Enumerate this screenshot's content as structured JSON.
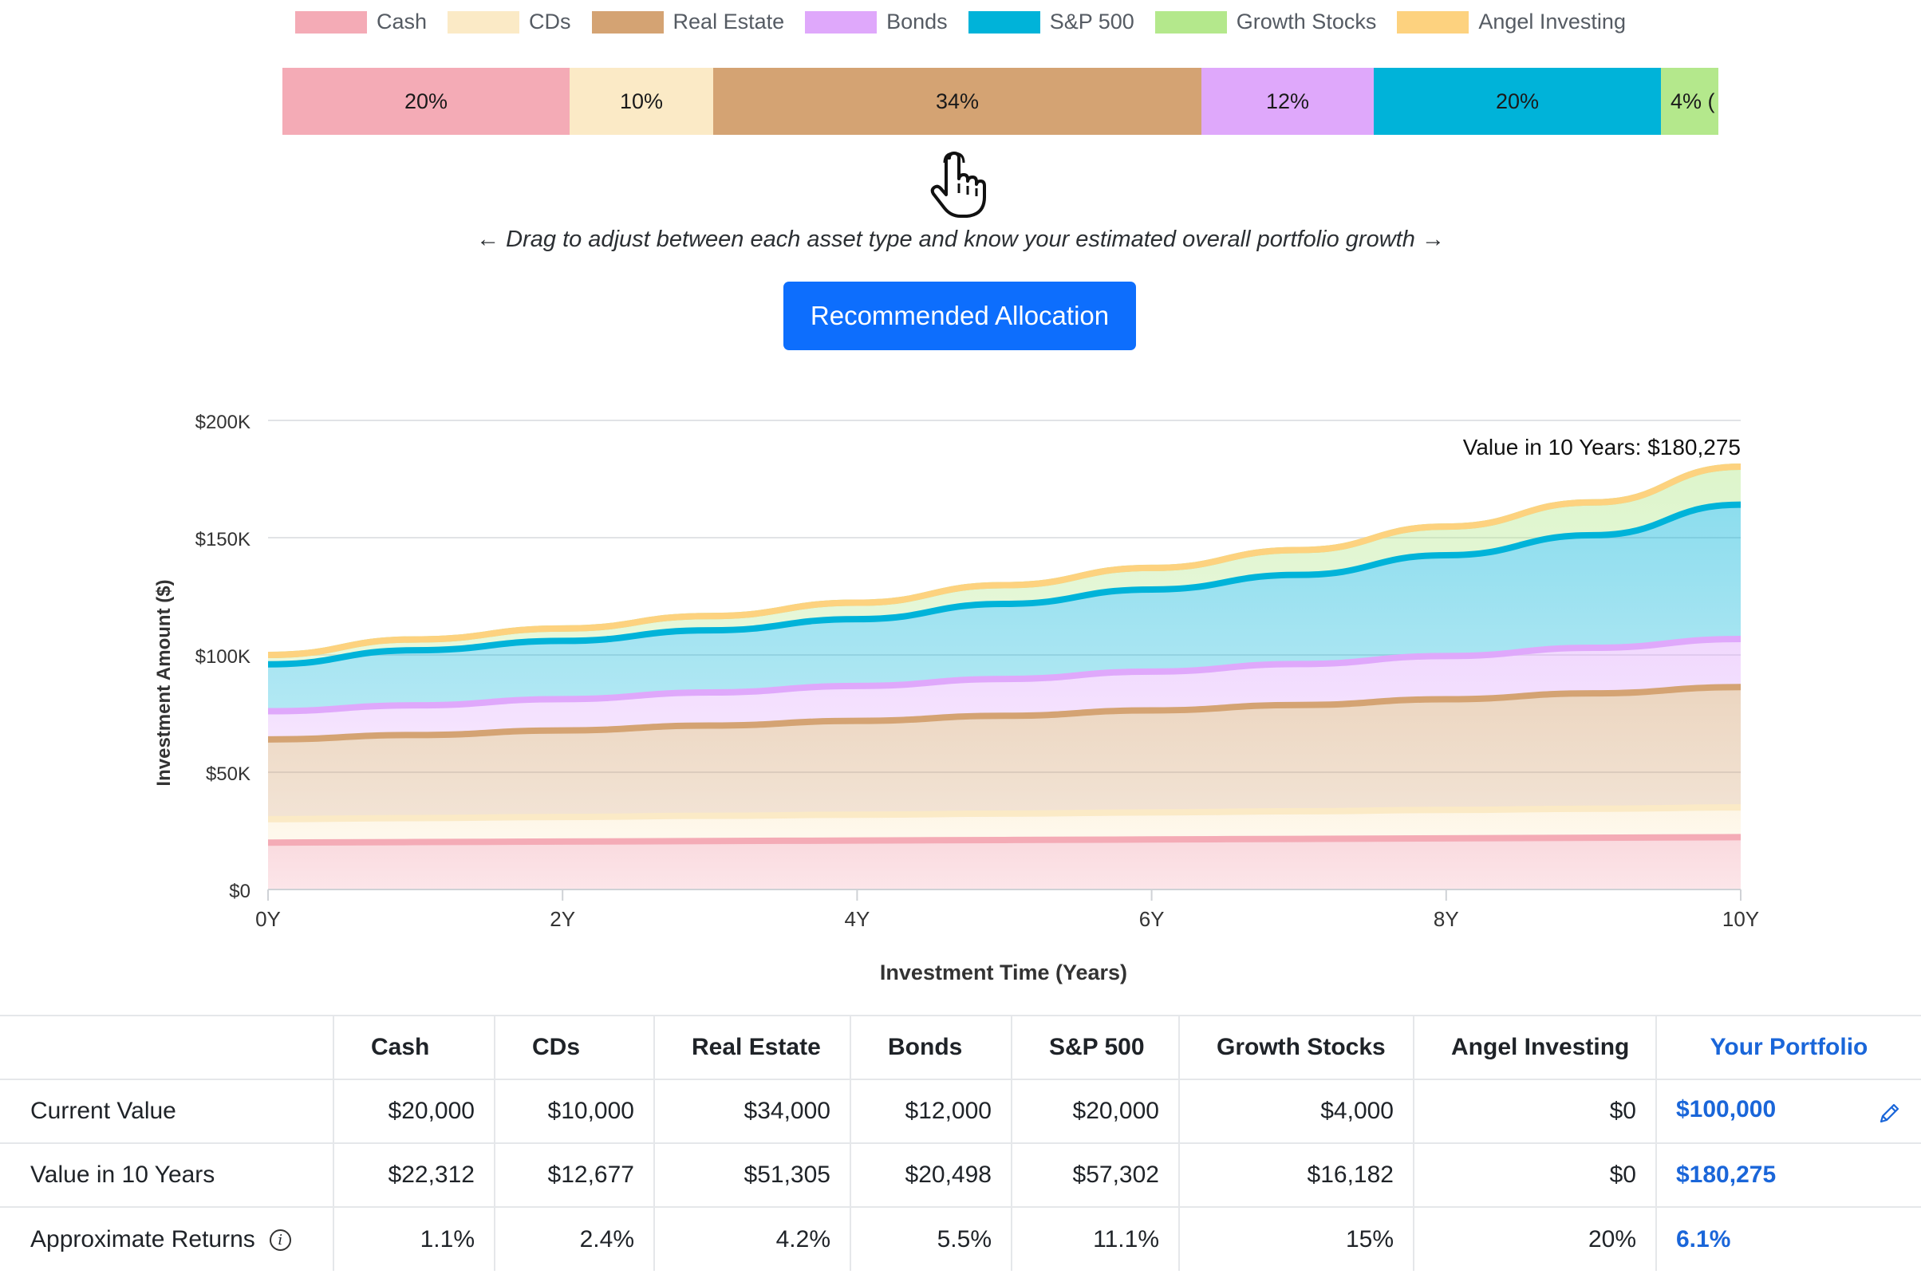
{
  "legend": [
    {
      "label": "Cash",
      "color": "#f4abb6"
    },
    {
      "label": "CDs",
      "color": "#fbeac6"
    },
    {
      "label": "Real Estate",
      "color": "#d4a373"
    },
    {
      "label": "Bonds",
      "color": "#dfa8fb"
    },
    {
      "label": "S&P 500",
      "color": "#00b3d9"
    },
    {
      "label": "Growth Stocks",
      "color": "#b4e88c"
    },
    {
      "label": "Angel Investing",
      "color": "#fdd27f"
    }
  ],
  "allocation": [
    {
      "label": "20%",
      "percent": 20,
      "color": "#f4abb6"
    },
    {
      "label": "10%",
      "percent": 10,
      "color": "#fbeac6"
    },
    {
      "label": "34%",
      "percent": 34,
      "color": "#d4a373"
    },
    {
      "label": "12%",
      "percent": 12,
      "color": "#dfa8fb"
    },
    {
      "label": "20%",
      "percent": 20,
      "color": "#00b3d9"
    },
    {
      "label": "4% (",
      "percent": 4,
      "color": "#b4e88c"
    }
  ],
  "hint": "← Drag to adjust between each asset type and know your estimated overall portfolio growth →",
  "recommended_button": "Recommended Allocation",
  "chart_data": {
    "type": "area",
    "stacked": true,
    "ylabel": "Investment Amount ($)",
    "xlabel": "Investment Time (Years)",
    "x": [
      0,
      1,
      2,
      3,
      4,
      5,
      6,
      7,
      8,
      9,
      10
    ],
    "x_tick_labels": [
      "0Y",
      "2Y",
      "4Y",
      "6Y",
      "8Y",
      "10Y"
    ],
    "x_ticks": [
      0,
      2,
      4,
      6,
      8,
      10
    ],
    "y_tick_labels": [
      "$0",
      "$50K",
      "$100K",
      "$150K",
      "$200K"
    ],
    "y_ticks": [
      0,
      50000,
      100000,
      150000,
      200000
    ],
    "ylim": [
      0,
      200000
    ],
    "annotation": "Value in 10 Years: $180,275",
    "series": [
      {
        "name": "Cash",
        "color": "#f4abb6",
        "values": [
          20000,
          20220,
          20440,
          20660,
          20880,
          21100,
          21330,
          21570,
          21820,
          22060,
          22312
        ]
      },
      {
        "name": "CDs",
        "color": "#fbeac6",
        "values": [
          10000,
          10240,
          10490,
          10740,
          11000,
          11260,
          11530,
          11800,
          12090,
          12380,
          12677
        ]
      },
      {
        "name": "Real Estate",
        "color": "#d4a373",
        "values": [
          34000,
          35400,
          36900,
          38500,
          40000,
          41700,
          43500,
          45300,
          47200,
          49200,
          51305
        ]
      },
      {
        "name": "Bonds",
        "color": "#dfa8fb",
        "values": [
          12000,
          12650,
          13350,
          14100,
          14880,
          15700,
          16550,
          17460,
          18420,
          19420,
          20498
        ]
      },
      {
        "name": "S&P 500",
        "color": "#00b3d9",
        "values": [
          20000,
          23500,
          24800,
          26500,
          28500,
          32000,
          35000,
          38000,
          43000,
          48000,
          57302
        ]
      },
      {
        "name": "Growth Stocks",
        "color": "#b4e88c",
        "values": [
          4000,
          4600,
          5300,
          6100,
          7000,
          8000,
          9200,
          10600,
          12200,
          14000,
          16182
        ]
      },
      {
        "name": "Angel Investing",
        "color": "#fdd27f",
        "values": [
          0,
          0,
          0,
          0,
          0,
          0,
          0,
          0,
          0,
          0,
          0
        ]
      }
    ]
  },
  "table": {
    "headers": [
      "",
      "Cash",
      "CDs",
      "Real Estate",
      "Bonds",
      "S&P 500",
      "Growth Stocks",
      "Angel Investing",
      "Your Portfolio"
    ],
    "rows": [
      {
        "label": "Current Value",
        "values": [
          "$20,000",
          "$10,000",
          "$34,000",
          "$12,000",
          "$20,000",
          "$4,000",
          "$0"
        ],
        "portfolio": "$100,000"
      },
      {
        "label": "Value in 10 Years",
        "values": [
          "$22,312",
          "$12,677",
          "$51,305",
          "$20,498",
          "$57,302",
          "$16,182",
          "$0"
        ],
        "portfolio": "$180,275"
      },
      {
        "label": "Approximate Returns",
        "values": [
          "1.1%",
          "2.4%",
          "4.2%",
          "5.5%",
          "11.1%",
          "15%",
          "20%"
        ],
        "portfolio": "6.1%"
      }
    ]
  },
  "icons": {
    "hand": "hand-pointer-icon",
    "edit": "pencil-icon",
    "info": "info-icon"
  }
}
